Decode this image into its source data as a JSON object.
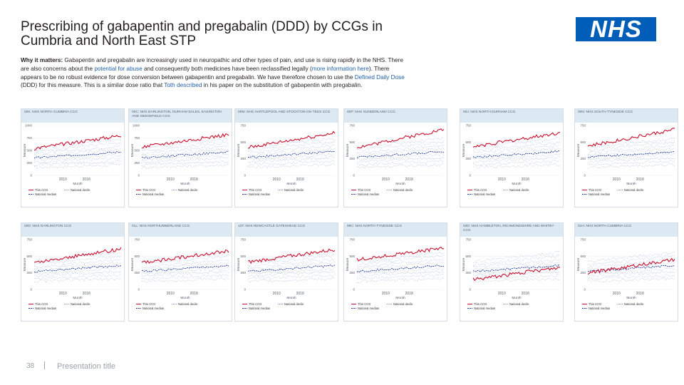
{
  "slide": {
    "title": "Prescribing of gabapentin and pregabalin (DDD) by CCGs in Cumbria and North East STP",
    "logo_text": "NHS",
    "body": {
      "label": "Why it matters:",
      "part1": " Gabapentin and pregabalin are increasingly used in neuropathic and other types of pain, and use is rising rapidly in the NHS. There are also concerns about the ",
      "link1": "potential for abuse",
      "part2": " and consequently both medicines have been reclassified legally (",
      "link2": "more information here",
      "part3": "). There appears to be no robust evidence for dose conversion between gabapentin and pregabalin. We have therefore chosen to use the ",
      "link3": "Defined Daily Dose",
      "part4": " (DDD) for this measure. This is a similar dose ratio that ",
      "link4": "Toth described",
      "part5": " in his paper on the substitution of gabapentin with pregabalin."
    },
    "footer": {
      "page_number": "38",
      "presentation_title": "Presentation title"
    }
  },
  "colors": {
    "ccg_line": "#c8102e",
    "median_line": "#1f3a93",
    "decile_line": "#6f8fc7",
    "header_bg": "#dde9f2",
    "logo_bg": "#005eb8"
  },
  "chart_data": [
    {
      "type": "line",
      "panel": "00K: NHS NORTH CUMBRIA CCG",
      "xlabel": "Month",
      "ylabel": "Measure",
      "yticks": [
        "1000",
        "750",
        "500",
        "250",
        "0"
      ],
      "xticks": [
        "2010",
        "2018"
      ],
      "ylim": [
        0,
        1000
      ],
      "ccg_start": 540,
      "ccg_end": 800,
      "median_start": 350,
      "median_end": 470,
      "legend": [
        "This CCG",
        "National decile",
        "National median"
      ]
    },
    {
      "type": "line",
      "panel": "00C: NHS DARLINGTON, DURHAM DALES, EASINGTON AND SEDGEFIELD CCG",
      "xlabel": "Month",
      "ylabel": "Measure",
      "yticks": [
        "1000",
        "750",
        "500",
        "250",
        "0"
      ],
      "xticks": [
        "2010",
        "2018"
      ],
      "ylim": [
        0,
        1000
      ],
      "ccg_start": 570,
      "ccg_end": 820,
      "median_start": 350,
      "median_end": 470,
      "legend": [
        "This CCG",
        "National decile",
        "National median"
      ]
    },
    {
      "type": "line",
      "panel": "00M: NHS HARTLEPOOL AND STOCKTON-ON-TEES CCG",
      "xlabel": "Month",
      "ylabel": "Measure",
      "yticks": [
        "750",
        "500",
        "250",
        "0"
      ],
      "xticks": [
        "2010",
        "2018"
      ],
      "ylim": [
        0,
        750
      ],
      "ccg_start": 420,
      "ccg_end": 640,
      "median_start": 270,
      "median_end": 360,
      "legend": [
        "This CCG",
        "National decile",
        "National median"
      ]
    },
    {
      "type": "line",
      "panel": "00P: NHS SUNDERLAND CCG",
      "xlabel": "Month",
      "ylabel": "Measure",
      "yticks": [
        "750",
        "500",
        "250",
        "0"
      ],
      "xticks": [
        "2010",
        "2018"
      ],
      "ylim": [
        0,
        750
      ],
      "ccg_start": 420,
      "ccg_end": 690,
      "median_start": 270,
      "median_end": 360,
      "legend": [
        "This CCG",
        "National decile",
        "National median"
      ]
    },
    {
      "type": "line",
      "panel": "00J: NHS NORTH DURHAM CCG",
      "xlabel": "Month",
      "ylabel": "Measure",
      "yticks": [
        "750",
        "500",
        "250",
        "0"
      ],
      "xticks": [
        "2010",
        "2018"
      ],
      "ylim": [
        0,
        750
      ],
      "ccg_start": 430,
      "ccg_end": 640,
      "median_start": 270,
      "median_end": 360,
      "legend": [
        "This CCG",
        "National decile",
        "National median"
      ]
    },
    {
      "type": "line",
      "panel": "00N: NHS SOUTH TYNESIDE CCG",
      "xlabel": "Month",
      "ylabel": "Measure",
      "yticks": [
        "750",
        "500",
        "250",
        "0"
      ],
      "xticks": [
        "2010",
        "2018"
      ],
      "ylim": [
        0,
        750
      ],
      "ccg_start": 440,
      "ccg_end": 690,
      "median_start": 270,
      "median_end": 360,
      "legend": [
        "This CCG",
        "National decile",
        "National median"
      ]
    },
    {
      "type": "line",
      "panel": "00D: NHS DARLINGTON CCG",
      "xlabel": "Month",
      "ylabel": "Measure",
      "yticks": [
        "750",
        "500",
        "250",
        "0"
      ],
      "xticks": [
        "2010",
        "2018"
      ],
      "ylim": [
        0,
        750
      ],
      "ccg_start": 400,
      "ccg_end": 610,
      "median_start": 270,
      "median_end": 360,
      "legend": [
        "This CCG",
        "National decile",
        "National median"
      ]
    },
    {
      "type": "line",
      "panel": "01L: NHS NORTHUMBERLAND CCG",
      "xlabel": "Month",
      "ylabel": "Measure",
      "yticks": [
        "750",
        "500",
        "250",
        "0"
      ],
      "xticks": [
        "2010",
        "2018"
      ],
      "ylim": [
        0,
        750
      ],
      "ccg_start": 400,
      "ccg_end": 580,
      "median_start": 270,
      "median_end": 360,
      "legend": [
        "This CCG",
        "National decile",
        "National median"
      ]
    },
    {
      "type": "line",
      "panel": "13T: NHS NEWCASTLE GATESHEAD CCG",
      "xlabel": "Month",
      "ylabel": "Measure",
      "yticks": [
        "750",
        "500",
        "250",
        "0"
      ],
      "xticks": [
        "2010",
        "2018"
      ],
      "ylim": [
        0,
        750
      ],
      "ccg_start": 410,
      "ccg_end": 600,
      "median_start": 270,
      "median_end": 360,
      "legend": [
        "This CCG",
        "National decile",
        "National median"
      ]
    },
    {
      "type": "line",
      "panel": "99C: NHS NORTH TYNESIDE CCG",
      "xlabel": "Month",
      "ylabel": "Measure",
      "yticks": [
        "750",
        "500",
        "250",
        "0"
      ],
      "xticks": [
        "2010",
        "2018"
      ],
      "ylim": [
        0,
        750
      ],
      "ccg_start": 450,
      "ccg_end": 620,
      "median_start": 270,
      "median_end": 360,
      "legend": [
        "This CCG",
        "National decile",
        "National median"
      ]
    },
    {
      "type": "line",
      "panel": "03D: NHS HAMBLETON, RICHMONDSHIRE AND WHITBY CCG",
      "xlabel": "Month",
      "ylabel": "Measure",
      "yticks": [
        "750",
        "500",
        "250",
        "0"
      ],
      "xticks": [
        "2010",
        "2018"
      ],
      "ylim": [
        0,
        750
      ],
      "ccg_start": 150,
      "ccg_end": 330,
      "median_start": 270,
      "median_end": 360,
      "legend": [
        "This CCG",
        "National decile",
        "National median"
      ]
    },
    {
      "type": "line",
      "panel": "01H: NHS NORTH CUMBRIA CCG",
      "xlabel": "Month",
      "ylabel": "Measure",
      "yticks": [
        "750",
        "500",
        "250",
        "0"
      ],
      "xticks": [
        "2010",
        "2018"
      ],
      "ylim": [
        0,
        750
      ],
      "ccg_start": 250,
      "ccg_end": 450,
      "median_start": 270,
      "median_end": 360,
      "legend": [
        "This CCG",
        "National decile",
        "National median"
      ]
    }
  ]
}
